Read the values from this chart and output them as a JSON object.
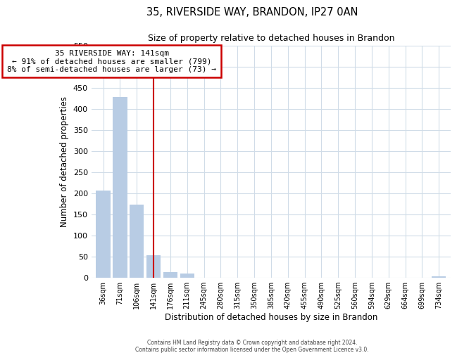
{
  "title": "35, RIVERSIDE WAY, BRANDON, IP27 0AN",
  "subtitle": "Size of property relative to detached houses in Brandon",
  "xlabel": "Distribution of detached houses by size in Brandon",
  "ylabel": "Number of detached properties",
  "bin_labels": [
    "36sqm",
    "71sqm",
    "106sqm",
    "141sqm",
    "176sqm",
    "211sqm",
    "245sqm",
    "280sqm",
    "315sqm",
    "350sqm",
    "385sqm",
    "420sqm",
    "455sqm",
    "490sqm",
    "525sqm",
    "560sqm",
    "594sqm",
    "629sqm",
    "664sqm",
    "699sqm",
    "734sqm"
  ],
  "bar_values": [
    206,
    428,
    172,
    53,
    13,
    9,
    0,
    0,
    0,
    0,
    0,
    0,
    0,
    0,
    0,
    0,
    0,
    0,
    0,
    0,
    3
  ],
  "bar_color": "#b8cce4",
  "property_line_x": 3,
  "vline_color": "#cc0000",
  "annotation_title": "35 RIVERSIDE WAY: 141sqm",
  "annotation_line1": "← 91% of detached houses are smaller (799)",
  "annotation_line2": "8% of semi-detached houses are larger (73) →",
  "annotation_box_color": "#ffffff",
  "annotation_box_edge": "#cc0000",
  "ylim": [
    0,
    550
  ],
  "yticks": [
    0,
    50,
    100,
    150,
    200,
    250,
    300,
    350,
    400,
    450,
    500,
    550
  ],
  "footer_line1": "Contains HM Land Registry data © Crown copyright and database right 2024.",
  "footer_line2": "Contains public sector information licensed under the Open Government Licence v3.0.",
  "background_color": "#ffffff",
  "grid_color": "#d0dce8"
}
